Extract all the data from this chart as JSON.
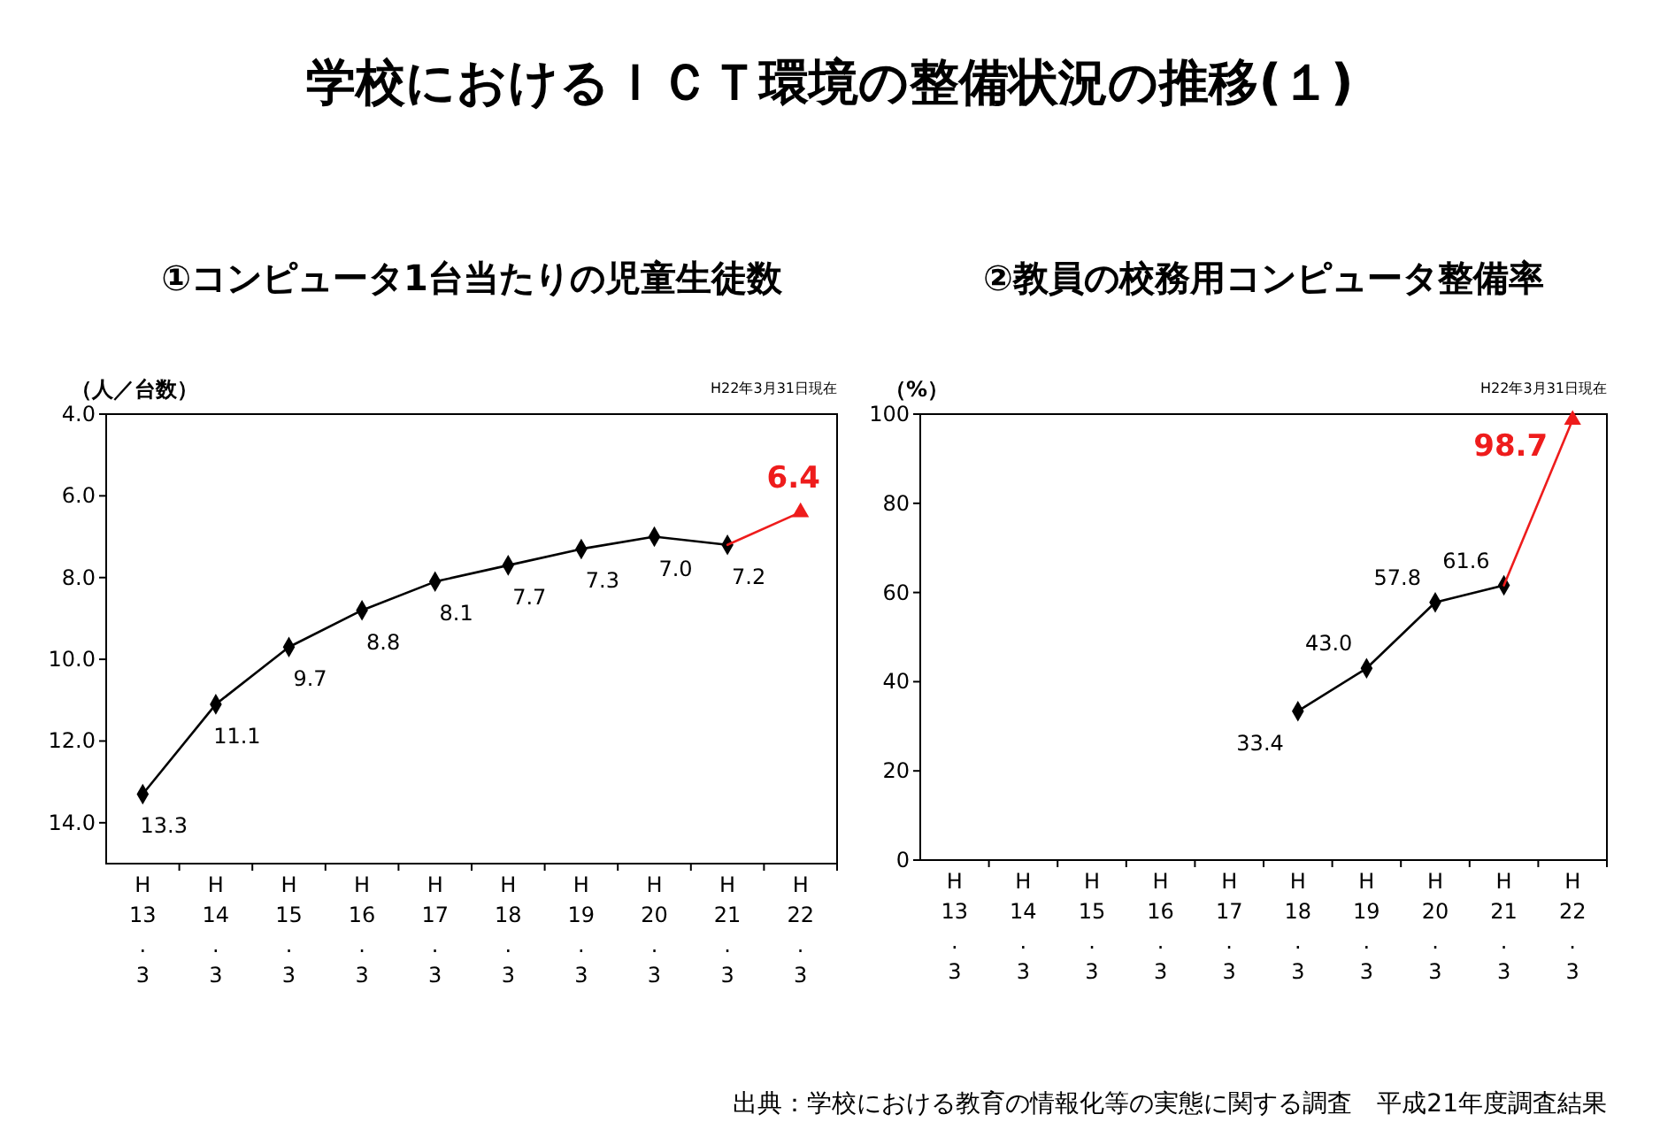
{
  "chart_data": [
    {
      "type": "line",
      "title": "①コンピュータ1台当たりの児童生徒数",
      "ylabel": "（人／台数）",
      "annotations": [
        "学校におけるＩＣＴ環境の整備状況の推移(１)",
        "H22年3月31日現在"
      ],
      "categories": [
        "H 13 . 3",
        "H 14 . 3",
        "H 15 . 3",
        "H 16 . 3",
        "H 17 . 3",
        "H 18 . 3",
        "H 19 . 3",
        "H 20 . 3",
        "H 21 . 3",
        "H 22 . 3"
      ],
      "series": [
        {
          "color": "#000000",
          "marker": "diamond",
          "values": [
            13.3,
            11.1,
            9.7,
            8.8,
            8.1,
            7.7,
            7.3,
            7.0,
            7.2,
            null
          ],
          "value_labels": [
            "13.3",
            "11.1",
            "9.7",
            "8.8",
            "8.1",
            "7.7",
            "7.3",
            "7.0",
            "7.2",
            null
          ]
        },
        {
          "color": "#ee1c1c",
          "marker": "triangle",
          "values": [
            null,
            null,
            null,
            null,
            null,
            null,
            null,
            null,
            7.2,
            6.4
          ],
          "value_labels": [
            null,
            null,
            null,
            null,
            null,
            null,
            null,
            null,
            null,
            "6.4"
          ]
        }
      ],
      "ylim": [
        15,
        4
      ],
      "yticks": [
        {
          "value": 4,
          "label": "4.0"
        },
        {
          "value": 6,
          "label": "6.0"
        },
        {
          "value": 8,
          "label": "8.0"
        },
        {
          "value": 10,
          "label": "10.0"
        },
        {
          "value": 12,
          "label": "12.0"
        },
        {
          "value": 14,
          "label": "14.0"
        }
      ],
      "grid": false
    },
    {
      "type": "line",
      "title": "②教員の校務用コンピュータ整備率",
      "ylabel": "（%）",
      "annotations": [
        "H22年3月31日現在",
        "出典：学校における教育の情報化等の実態に関する調査　平成21年度調査結果"
      ],
      "categories": [
        "H 13 . 3",
        "H 14 . 3",
        "H 15 . 3",
        "H 16 . 3",
        "H 17 . 3",
        "H 18 . 3",
        "H 19 . 3",
        "H 20 . 3",
        "H 21 . 3",
        "H 22 . 3"
      ],
      "series": [
        {
          "color": "#000000",
          "marker": "diamond",
          "values": [
            null,
            null,
            null,
            null,
            null,
            33.4,
            43.0,
            57.8,
            61.6,
            null
          ],
          "value_labels": [
            null,
            null,
            null,
            null,
            null,
            "33.4",
            "43.0",
            "57.8",
            "61.6",
            null
          ]
        },
        {
          "color": "#ee1c1c",
          "marker": "triangle",
          "values": [
            null,
            null,
            null,
            null,
            null,
            null,
            null,
            null,
            61.6,
            98.7
          ],
          "value_labels": [
            null,
            null,
            null,
            null,
            null,
            null,
            null,
            null,
            null,
            "98.7"
          ]
        }
      ],
      "ylim": [
        0,
        100
      ],
      "yticks": [
        0,
        20,
        40,
        60,
        80,
        100
      ],
      "grid": false
    }
  ]
}
